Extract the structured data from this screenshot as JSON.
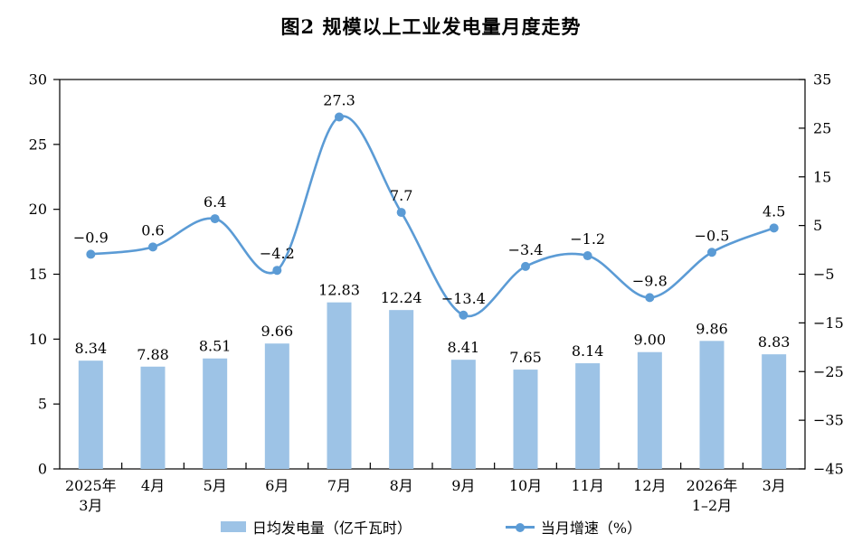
{
  "title": "图2 规模以上工业发电量月度走势",
  "legend": {
    "bar_label": "日均发电量（亿千瓦时）",
    "line_label": "当月增速（%）"
  },
  "chart_data": {
    "type": "bar",
    "subtype": "bar+line combo, dual axis",
    "title": "图2 规模以上工业发电量月度走势",
    "categories": [
      [
        "2025年",
        "3月"
      ],
      [
        "4月"
      ],
      [
        "5月"
      ],
      [
        "6月"
      ],
      [
        "7月"
      ],
      [
        "8月"
      ],
      [
        "9月"
      ],
      [
        "10月"
      ],
      [
        "11月"
      ],
      [
        "12月"
      ],
      [
        "2026年",
        "1–2月"
      ],
      [
        "3月"
      ]
    ],
    "series": [
      {
        "name": "日均发电量（亿千瓦时）",
        "type": "bar",
        "axis": "left",
        "color": "#9DC3E6",
        "values": [
          8.34,
          7.88,
          8.51,
          9.66,
          12.83,
          12.24,
          8.41,
          7.65,
          8.14,
          9.0,
          9.86,
          8.83
        ]
      },
      {
        "name": "当月增速（%）",
        "type": "line",
        "axis": "right",
        "color": "#5B9BD5",
        "values": [
          -0.9,
          0.6,
          6.4,
          -4.2,
          27.3,
          7.7,
          -13.4,
          -3.4,
          -1.2,
          -9.8,
          -0.5,
          4.5
        ]
      }
    ],
    "left_axis": {
      "min": 0,
      "max": 30,
      "step": 5,
      "ticks": [
        0,
        5,
        10,
        15,
        20,
        25,
        30
      ]
    },
    "right_axis": {
      "min": -45,
      "max": 35,
      "step": 10,
      "ticks": [
        -45,
        -35,
        -25,
        -15,
        -5,
        5,
        15,
        25,
        35
      ]
    },
    "grid": false,
    "legend_position": "bottom",
    "text_color": "#000000",
    "axis_color": "#000000"
  }
}
